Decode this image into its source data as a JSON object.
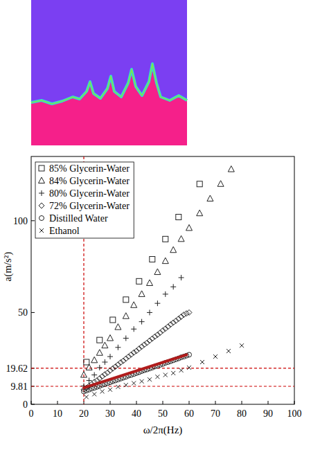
{
  "chart_data": {
    "type": "scatter",
    "x_label": "ω/2π(Hz)",
    "y_label": "a(m/s²)",
    "xlim": [
      0,
      100
    ],
    "ylim": [
      0,
      135
    ],
    "xticks": [
      0,
      10,
      20,
      30,
      40,
      50,
      60,
      70,
      80,
      90,
      100
    ],
    "yticks": [
      0,
      9.81,
      19.62,
      50,
      100
    ],
    "grid": false,
    "legend": "upper left",
    "series": [
      {
        "name": "85% Glycerin-Water",
        "color": "#222222",
        "marker": "square",
        "x": [
          21,
          26,
          31,
          36,
          41,
          46,
          51,
          56,
          64
        ],
        "values": [
          23,
          35,
          46,
          57,
          67,
          79,
          90,
          102,
          120
        ]
      },
      {
        "name": "84% Glycerin-Water",
        "color": "#222222",
        "marker": "triangle",
        "x": [
          20,
          22,
          24,
          26,
          28,
          30,
          33,
          36,
          39,
          42,
          45,
          48,
          51,
          54,
          57,
          60,
          64,
          68,
          72,
          76
        ],
        "values": [
          16,
          20,
          24,
          28,
          32,
          36,
          42,
          48,
          54,
          60,
          66,
          72,
          78,
          84,
          90,
          96,
          104,
          112,
          120,
          128
        ]
      },
      {
        "name": "80% Glycerin-Water",
        "color": "#222222",
        "marker": "plus",
        "x": [
          20,
          22,
          24,
          26,
          28,
          30,
          33,
          36,
          39,
          42,
          45,
          48,
          51,
          54,
          57
        ],
        "values": [
          10,
          13,
          16,
          20,
          23,
          26,
          31,
          36,
          41,
          45,
          50,
          55,
          60,
          64,
          69
        ]
      },
      {
        "name": "72% Glycerin-Water",
        "color": "#222222",
        "marker": "diamond",
        "x": [
          20,
          21,
          22,
          23,
          24,
          25,
          26,
          27,
          28,
          29,
          30,
          31,
          32,
          33,
          34,
          35,
          36,
          37,
          38,
          39,
          40,
          41,
          42,
          43,
          44,
          45,
          46,
          47,
          48,
          49,
          50,
          51,
          52,
          53,
          54,
          55,
          56,
          57,
          58,
          59,
          60
        ],
        "values": [
          8,
          9,
          10,
          11,
          12.2,
          13,
          14.1,
          15.2,
          16.3,
          17.2,
          18.4,
          19.5,
          20.5,
          21.6,
          22.8,
          23.7,
          24.9,
          26,
          27.1,
          28.2,
          29.1,
          30.3,
          31.4,
          32.5,
          33.5,
          34.7,
          35.8,
          36.9,
          37.9,
          39,
          40.2,
          41.2,
          42.3,
          43.5,
          44.5,
          45.5,
          46.6,
          47.7,
          48.8,
          49.5,
          50
        ]
      },
      {
        "name": "Distilled Water",
        "color": "#222222",
        "marker": "circle",
        "x": [
          20,
          21,
          22,
          23,
          24,
          25,
          26,
          27,
          28,
          29,
          30,
          31,
          32,
          33,
          34,
          35,
          36,
          37,
          38,
          39,
          40,
          41,
          42,
          43,
          44,
          45,
          46,
          47,
          48,
          49,
          50,
          51,
          52,
          53,
          54,
          55,
          56,
          57,
          58,
          59,
          60
        ],
        "values": [
          7,
          7.5,
          8,
          8.6,
          9,
          9.5,
          10,
          10.6,
          11,
          11.5,
          12,
          12.6,
          13,
          13.5,
          14,
          14.5,
          15,
          15.6,
          16,
          16.5,
          17,
          17.5,
          18.1,
          18.6,
          19,
          19.5,
          20,
          20.6,
          21,
          21.5,
          22,
          22.6,
          23,
          23.5,
          24,
          24.5,
          25,
          25.6,
          26,
          26.5,
          27
        ]
      },
      {
        "name": "Ethanol",
        "color": "#222222",
        "marker": "x",
        "x": [
          21,
          24,
          27,
          30,
          33,
          36,
          39,
          42,
          45,
          48,
          51,
          54,
          57,
          60,
          65,
          70,
          75,
          80
        ],
        "values": [
          4,
          5.5,
          7,
          8,
          9.5,
          10.5,
          11.5,
          12.5,
          13.5,
          15,
          16,
          17,
          18.5,
          20,
          23,
          26,
          29,
          32
        ]
      }
    ],
    "reference_lines": {
      "x": [
        20
      ],
      "y": [
        9.81,
        19.62
      ],
      "color": "#cc0000",
      "line_style": "dashed"
    },
    "fit_line": {
      "x": [
        20,
        59
      ],
      "values": [
        9,
        27
      ],
      "color": "#b01c1c"
    }
  }
}
